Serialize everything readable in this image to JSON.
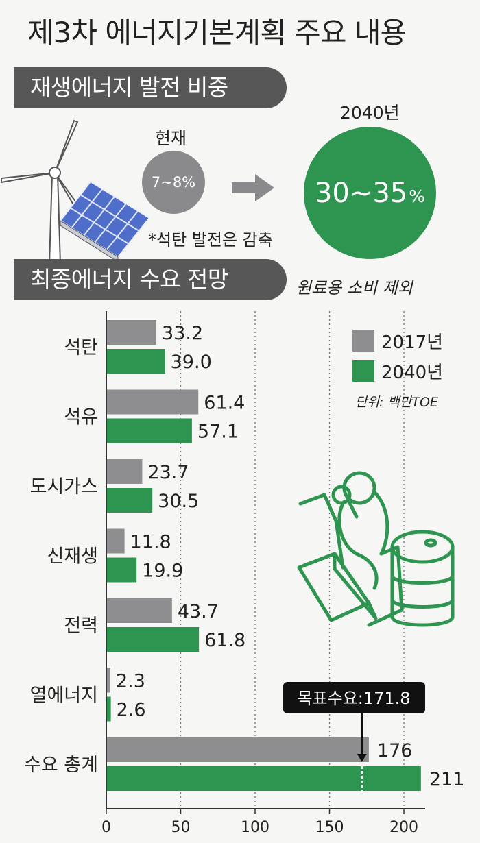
{
  "title": "제3차 에너지기본계획 주요 내용",
  "section1": {
    "banner": "재생에너지 발전 비중",
    "current_label": "현재",
    "current_value": "7~8%",
    "target_label": "2040년",
    "target_value": "30~35",
    "target_unit": "%",
    "note": "*석탄 발전은 감축"
  },
  "section2": {
    "banner": "최종에너지 수요 전망",
    "subnote": "원료용 소비 제외",
    "unit": "단위: 백만TOE"
  },
  "colors": {
    "gray": "#8e8e90",
    "green": "#2e9550",
    "dark": "#575757"
  },
  "chart_data": {
    "type": "bar",
    "orientation": "horizontal",
    "categories": [
      "석탄",
      "석유",
      "도시가스",
      "신재생",
      "전력",
      "열에너지",
      "수요 총계"
    ],
    "series": [
      {
        "name": "2017년",
        "values": [
          33.2,
          61.4,
          23.7,
          11.8,
          43.7,
          2.3,
          176
        ]
      },
      {
        "name": "2040년",
        "values": [
          39.0,
          57.1,
          30.5,
          19.9,
          61.8,
          2.6,
          211
        ]
      }
    ],
    "value_labels": [
      [
        "33.2",
        "61.4",
        "23.7",
        "11.8",
        "43.7",
        "2.3",
        "176"
      ],
      [
        "39.0",
        "57.1",
        "30.5",
        "19.9",
        "61.8",
        "2.6",
        "211"
      ]
    ],
    "xlim": [
      0,
      210
    ],
    "xticks": [
      0,
      50,
      100,
      150,
      200
    ],
    "annotation": {
      "text": "목표수요:171.8",
      "value": 171.8
    },
    "legend_position": "top-right",
    "grid": true
  }
}
